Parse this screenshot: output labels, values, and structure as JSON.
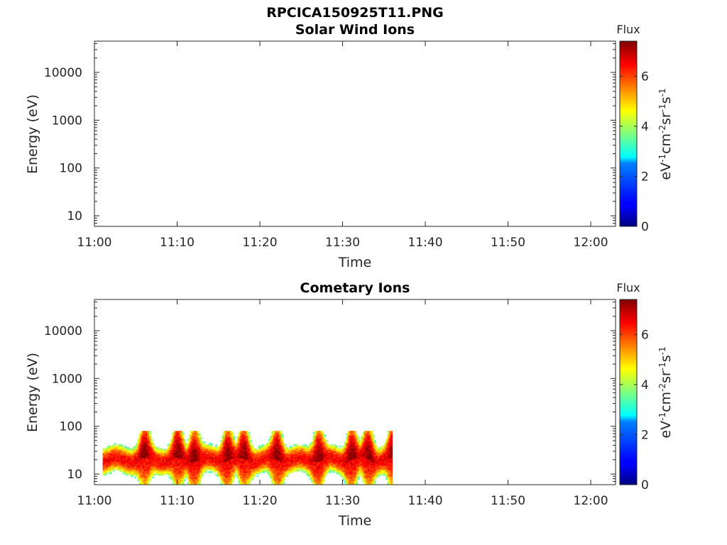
{
  "figure": {
    "title": "RPCICA150925T11.PNG"
  },
  "chart_data": [
    {
      "type": "heatmap",
      "title": "Solar Wind Ions",
      "xlabel": "Time",
      "ylabel": "Energy (eV)",
      "xticks": [
        "11:00",
        "11:10",
        "11:20",
        "11:30",
        "11:40",
        "11:50",
        "12:00"
      ],
      "xlim": [
        "11:00",
        "12:03"
      ],
      "yscale": "log",
      "yticks": [
        "10",
        "100",
        "1000",
        "10000"
      ],
      "ylim": [
        6,
        45000
      ],
      "colorbar": {
        "title": "Flux",
        "label": "eV-1cm-2sr-1s-1",
        "colormap": "jet",
        "range": [
          0,
          7.4
        ],
        "ticks": [
          "0",
          "2",
          "4",
          "6"
        ]
      },
      "data": []
    },
    {
      "type": "heatmap",
      "title": "Cometary Ions",
      "xlabel": "Time",
      "ylabel": "Energy (eV)",
      "xticks": [
        "11:00",
        "11:10",
        "11:20",
        "11:30",
        "11:40",
        "11:50",
        "12:00"
      ],
      "xlim": [
        "11:00",
        "12:03"
      ],
      "yscale": "log",
      "yticks": [
        "10",
        "100",
        "1000",
        "10000"
      ],
      "ylim": [
        6,
        45000
      ],
      "colorbar": {
        "title": "Flux",
        "label": "eV-1cm-2sr-1s-1",
        "colormap": "jet",
        "range": [
          0,
          7.4
        ],
        "ticks": [
          "0",
          "2",
          "4",
          "6"
        ]
      },
      "data": {
        "time_range": [
          "11:01",
          "11:36"
        ],
        "energy_range_eV": [
          6,
          80
        ],
        "peak_energy_eV": 20,
        "peak_flux": 6.5,
        "bursts_to_80eV": [
          "11:06",
          "11:10",
          "11:12",
          "11:16",
          "11:18",
          "11:22",
          "11:27",
          "11:31",
          "11:33",
          "11:36"
        ]
      }
    }
  ]
}
